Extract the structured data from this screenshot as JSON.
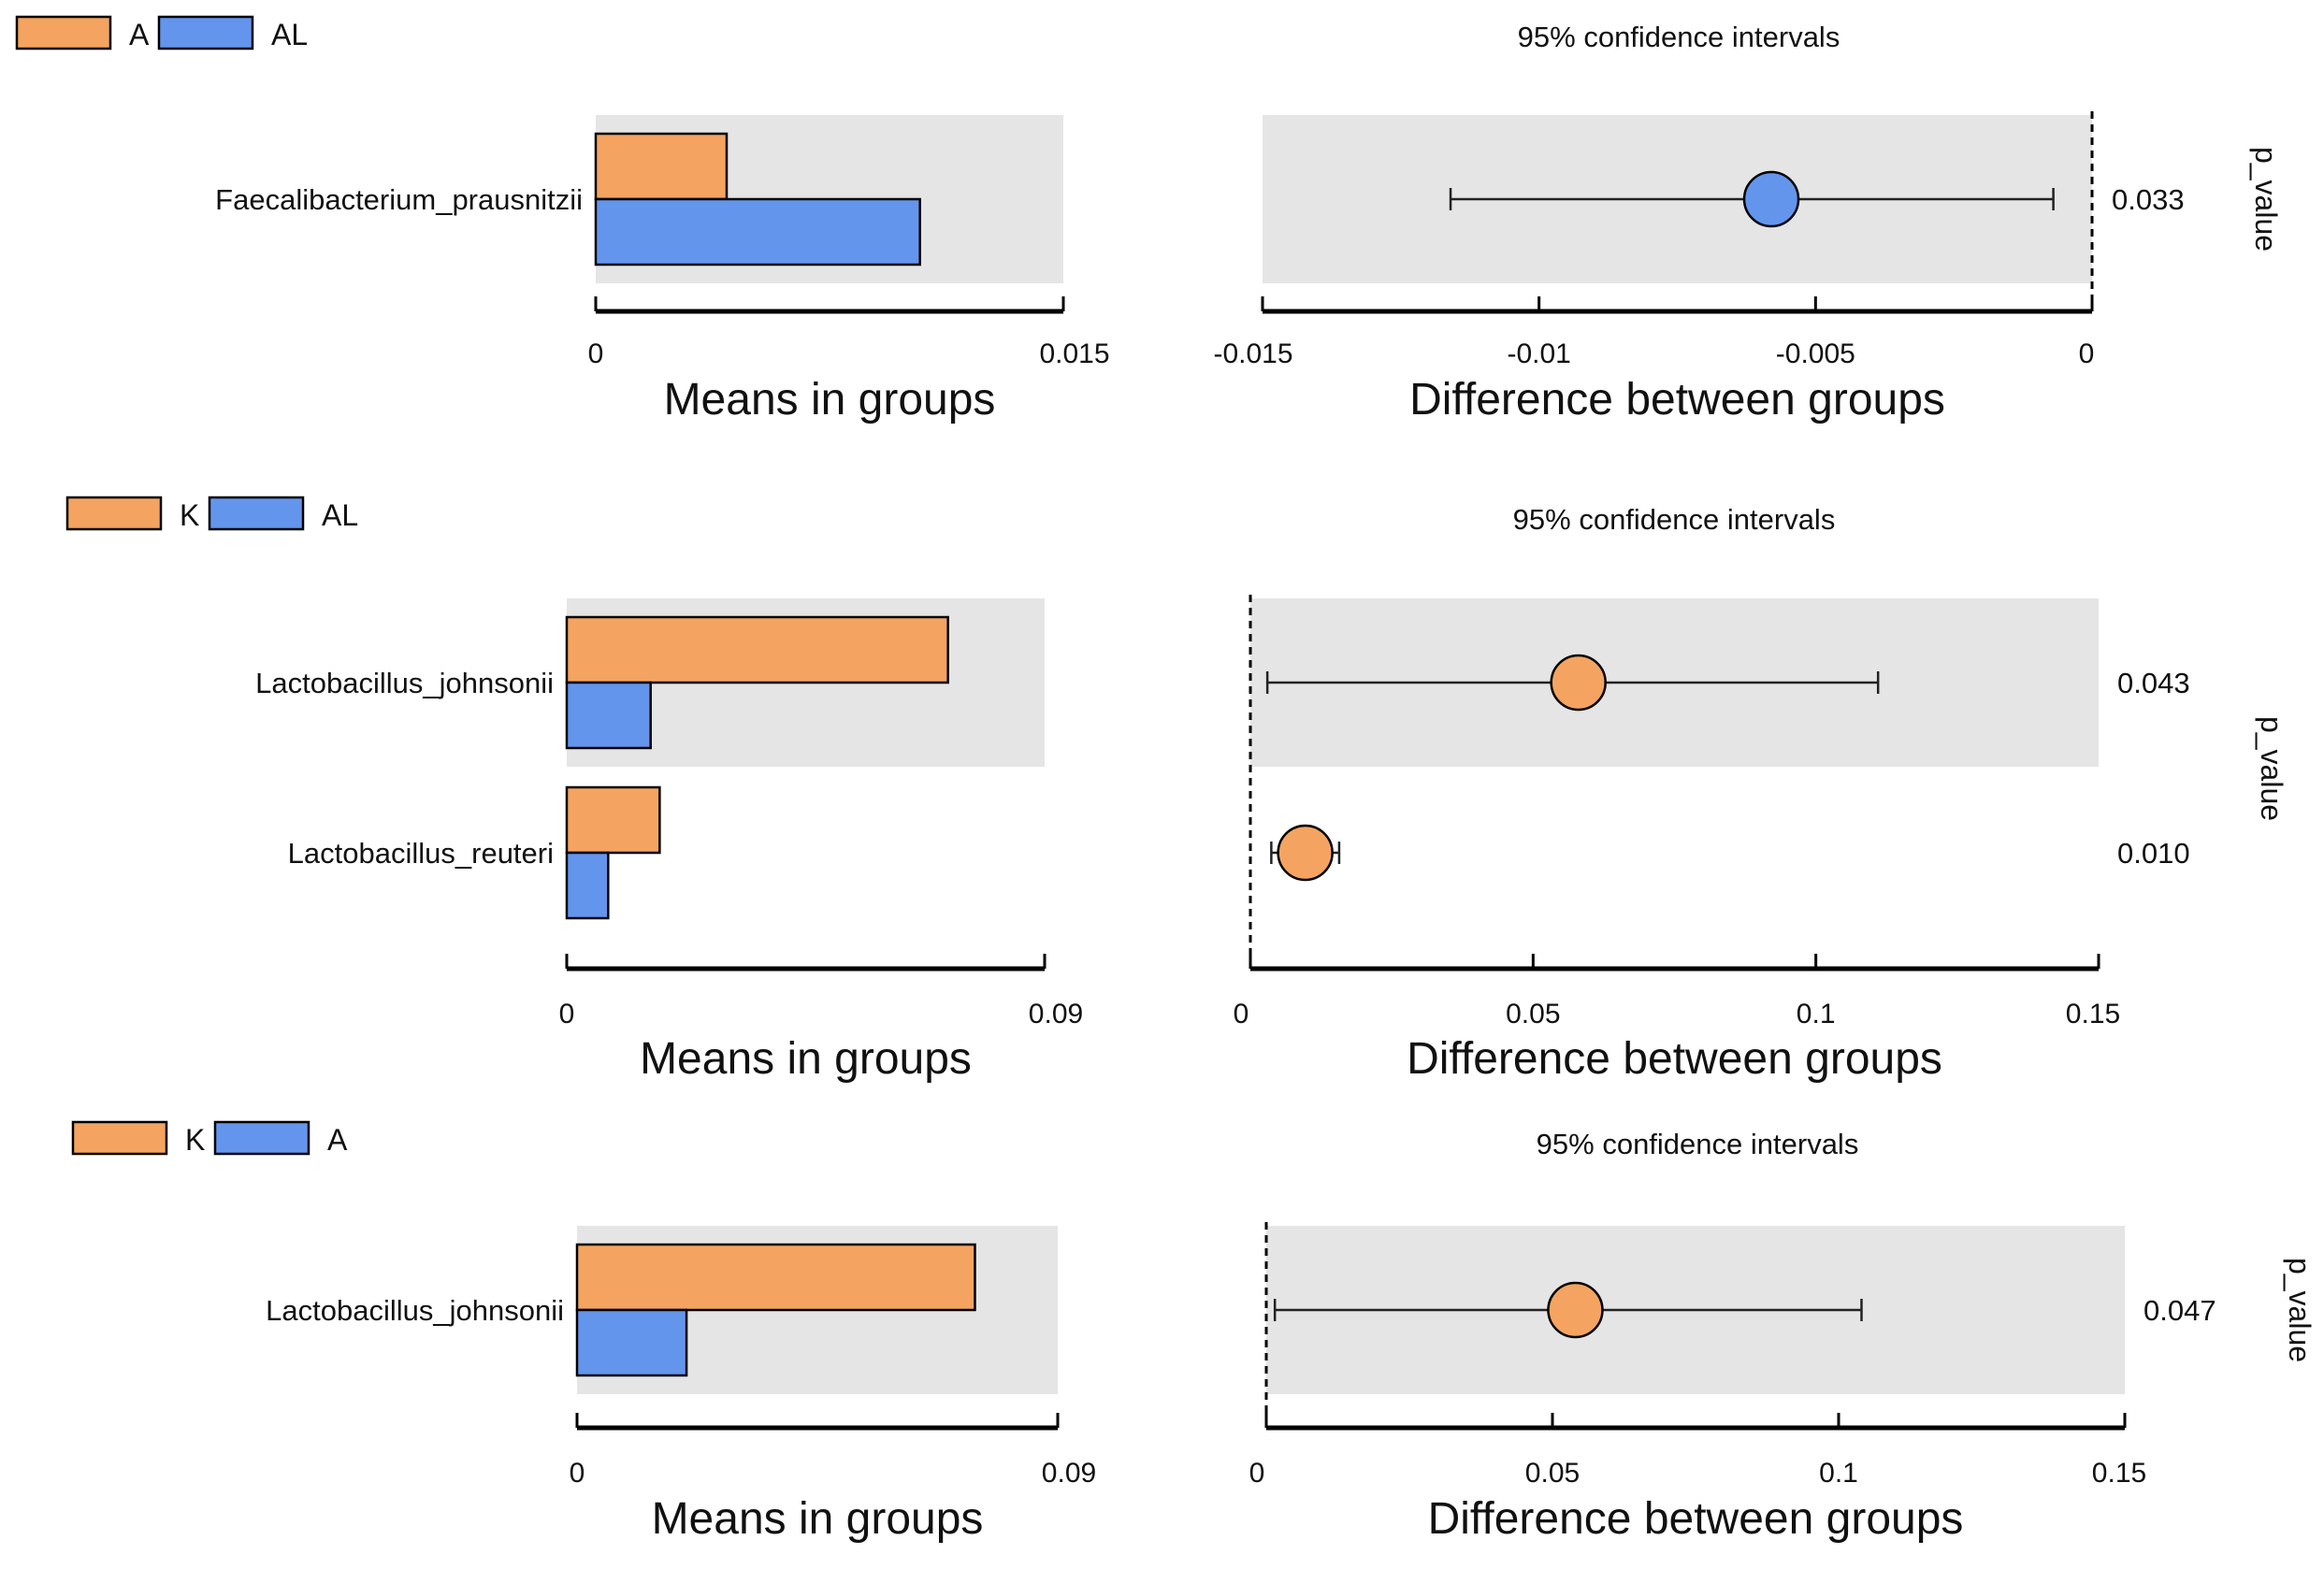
{
  "colors": {
    "group1": "#F4A460",
    "group2": "#6495ED",
    "panel_bg": "#E5E5E5",
    "stroke": "#000000"
  },
  "chart_data": [
    {
      "type": "bar",
      "legend": [
        "A",
        "AL"
      ],
      "ci_title": "95% confidence intervals",
      "means_xlabel": "Means in groups",
      "diff_xlabel": "Difference between groups",
      "pvalue_label": "p_value",
      "means_ticks": [
        "0",
        "0.015"
      ],
      "means_xlim": [
        0,
        0.015
      ],
      "diff_ticks": [
        "-0.015",
        "-0.01",
        "-0.005",
        "0"
      ],
      "diff_xlim": [
        -0.015,
        0
      ],
      "categories": [
        "Faecalibacterium_prausnitzii"
      ],
      "series": [
        {
          "name": "A",
          "values": [
            0.0042
          ]
        },
        {
          "name": "AL",
          "values": [
            0.0104
          ]
        }
      ],
      "difference": [
        {
          "estimate": -0.0058,
          "ci_low": -0.0116,
          "ci_high": -0.0007,
          "color_group": "AL"
        }
      ],
      "p_values": [
        "0.033"
      ]
    },
    {
      "type": "bar",
      "legend": [
        "K",
        "AL"
      ],
      "ci_title": "95% confidence intervals",
      "means_xlabel": "Means in groups",
      "diff_xlabel": "Difference between groups",
      "pvalue_label": "p_value",
      "means_ticks": [
        "0",
        "0.09"
      ],
      "means_xlim": [
        0,
        0.09
      ],
      "diff_ticks": [
        "0",
        "0.05",
        "0.1",
        "0.15"
      ],
      "diff_xlim": [
        0,
        0.15
      ],
      "categories": [
        "Lactobacillus_johnsonii",
        "Lactobacillus_reuteri"
      ],
      "series": [
        {
          "name": "K",
          "values": [
            0.0718,
            0.0175
          ]
        },
        {
          "name": "AL",
          "values": [
            0.0158,
            0.0078
          ]
        }
      ],
      "difference": [
        {
          "estimate": 0.058,
          "ci_low": 0.003,
          "ci_high": 0.111,
          "color_group": "K"
        },
        {
          "estimate": 0.0097,
          "ci_low": 0.0037,
          "ci_high": 0.0157,
          "color_group": "K"
        }
      ],
      "p_values": [
        "0.043",
        "0.010"
      ]
    },
    {
      "type": "bar",
      "legend": [
        "K",
        "A"
      ],
      "ci_title": "95% confidence intervals",
      "means_xlabel": "Means in groups",
      "diff_xlabel": "Difference between groups",
      "pvalue_label": "p_value",
      "means_ticks": [
        "0",
        "0.09"
      ],
      "means_xlim": [
        0,
        0.09
      ],
      "diff_ticks": [
        "0",
        "0.05",
        "0.1",
        "0.15"
      ],
      "diff_xlim": [
        0,
        0.15
      ],
      "categories": [
        "Lactobacillus_johnsonii"
      ],
      "series": [
        {
          "name": "K",
          "values": [
            0.0745
          ]
        },
        {
          "name": "A",
          "values": [
            0.0205
          ]
        }
      ],
      "difference": [
        {
          "estimate": 0.054,
          "ci_low": 0.0015,
          "ci_high": 0.104,
          "color_group": "K"
        }
      ],
      "p_values": [
        "0.047"
      ]
    }
  ]
}
